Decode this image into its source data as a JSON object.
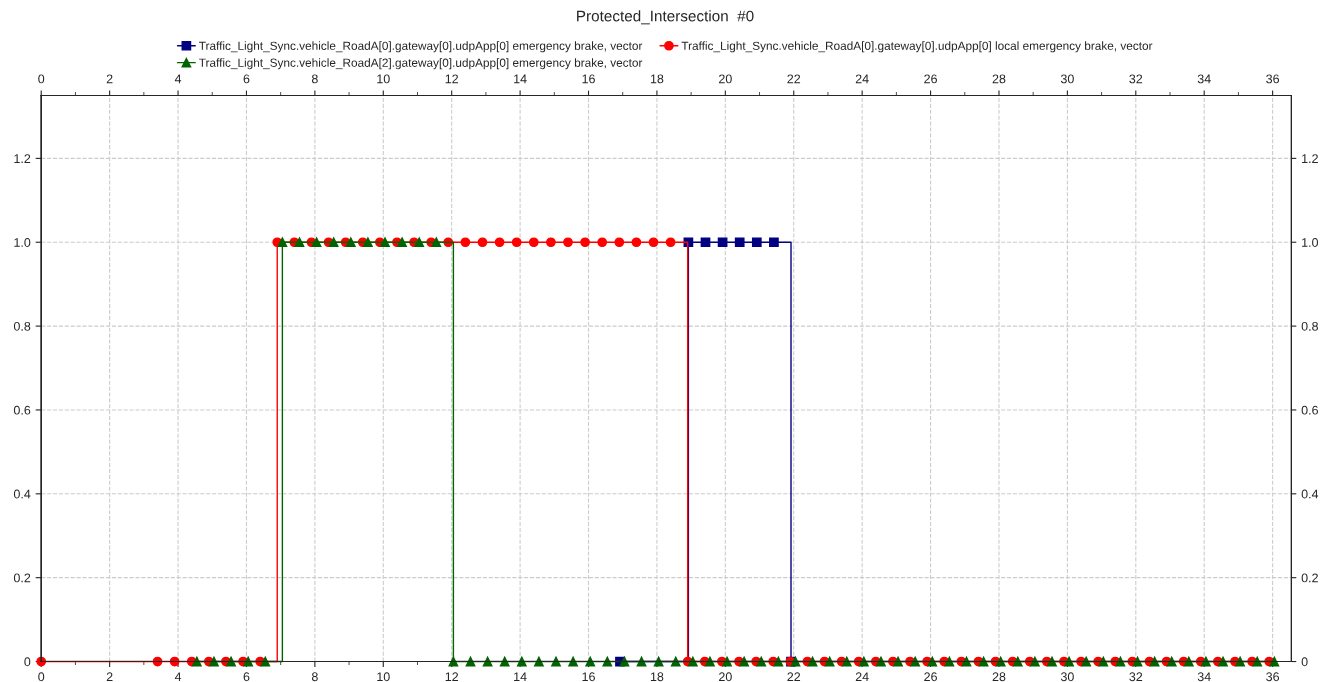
{
  "chart_data": {
    "type": "step",
    "title": "Protected_Intersection  #0",
    "xlim": [
      0,
      36.55
    ],
    "ylim": [
      0,
      1.35
    ],
    "xticks": [
      0,
      {
        "value": 1,
        "label": null
      },
      2,
      {
        "value": 3,
        "label": null
      },
      4,
      {
        "value": 5,
        "label": null
      },
      6,
      {
        "value": 7,
        "label": null
      },
      8,
      {
        "value": 9,
        "label": null
      },
      10,
      {
        "value": 11,
        "label": null
      },
      12,
      {
        "value": 13,
        "label": null
      },
      14,
      {
        "value": 15,
        "label": null
      },
      16,
      {
        "value": 17,
        "label": null
      },
      18,
      {
        "value": 19,
        "label": null
      },
      20,
      {
        "value": 21,
        "label": null
      },
      22,
      {
        "value": 23,
        "label": null
      },
      24,
      {
        "value": 25,
        "label": null
      },
      26,
      {
        "value": 27,
        "label": null
      },
      28,
      {
        "value": 29,
        "label": null
      },
      30,
      {
        "value": 31,
        "label": null
      },
      32,
      {
        "value": 33,
        "label": null
      },
      34,
      {
        "value": 35,
        "label": null
      },
      36
    ],
    "x2lim": [
      0,
      36.55
    ],
    "x2ticks": [
      0,
      {
        "value": 1,
        "label": null
      },
      2,
      {
        "value": 3,
        "label": null
      },
      4,
      {
        "value": 5,
        "label": null
      },
      6,
      {
        "value": 7,
        "label": null
      },
      8,
      {
        "value": 9,
        "label": null
      },
      10,
      {
        "value": 11,
        "label": null
      },
      12,
      {
        "value": 13,
        "label": null
      },
      14,
      {
        "value": 15,
        "label": null
      },
      16,
      {
        "value": 17,
        "label": null
      },
      18,
      {
        "value": 19,
        "label": null
      },
      20,
      {
        "value": 21,
        "label": null
      },
      22,
      {
        "value": 23,
        "label": null
      },
      24,
      {
        "value": 25,
        "label": null
      },
      26,
      {
        "value": 27,
        "label": null
      },
      28,
      {
        "value": 29,
        "label": null
      },
      30,
      {
        "value": 31,
        "label": null
      },
      32,
      {
        "value": 33,
        "label": null
      },
      34,
      {
        "value": 35,
        "label": null
      },
      36
    ],
    "yticks": [
      0,
      0.2,
      0.4,
      0.6,
      0.8,
      {
        "value": 1,
        "label": "1.0"
      },
      1.2
    ],
    "y2lim": [
      0,
      1.35
    ],
    "y2ticks": [
      0,
      0.2,
      0.4,
      0.6,
      0.8,
      {
        "value": 1,
        "label": "1.0"
      },
      1.2
    ],
    "grid": true,
    "legend": "top",
    "series": [
      {
        "name": "Traffic_Light_Sync.vehicle_RoadA[0].gateway[0].udpApp[0] emergency brake, vector",
        "color": "#000080",
        "marker": "square",
        "x": [
          16.92,
          18.92,
          19.42,
          19.92,
          20.42,
          20.92,
          21.42,
          21.92
        ],
        "values": [
          0,
          1,
          1,
          1,
          1,
          1,
          1,
          0
        ]
      },
      {
        "name": "Traffic_Light_Sync.vehicle_RoadA[0].gateway[0].udpApp[0] local emergency brake, vector",
        "color": "#ff0000",
        "marker": "circle",
        "x": [
          0,
          3.4,
          3.9,
          4.4,
          4.9,
          5.4,
          5.9,
          6.4,
          6.9,
          7.4,
          7.9,
          8.4,
          8.9,
          9.4,
          9.9,
          10.4,
          10.9,
          11.4,
          11.9,
          12.4,
          12.9,
          13.4,
          13.9,
          14.4,
          14.9,
          15.4,
          15.9,
          16.4,
          16.9,
          17.4,
          17.9,
          18.4,
          18.9,
          19.4,
          19.9,
          20.4,
          20.9,
          21.4,
          21.9,
          22.4,
          22.9,
          23.4,
          23.9,
          24.4,
          24.9,
          25.4,
          25.9,
          26.4,
          26.9,
          27.4,
          27.9,
          28.4,
          28.9,
          29.4,
          29.9,
          30.4,
          30.9,
          31.4,
          31.9,
          32.4,
          32.9,
          33.4,
          33.9,
          34.4,
          34.9,
          35.4,
          35.9
        ],
        "values": [
          0,
          0,
          0,
          0,
          0,
          0,
          0,
          0,
          1,
          1,
          1,
          1,
          1,
          1,
          1,
          1,
          1,
          1,
          1,
          1,
          1,
          1,
          1,
          1,
          1,
          1,
          1,
          1,
          1,
          1,
          1,
          1,
          0,
          0,
          0,
          0,
          0,
          0,
          0,
          0,
          0,
          0,
          0,
          0,
          0,
          0,
          0,
          0,
          0,
          0,
          0,
          0,
          0,
          0,
          0,
          0,
          0,
          0,
          0,
          0,
          0,
          0,
          0,
          0,
          0,
          0,
          0
        ]
      },
      {
        "name": "Traffic_Light_Sync.vehicle_RoadA[2].gateway[0].udpApp[0] emergency brake, vector",
        "color": "#006400",
        "marker": "triangle",
        "x": [
          4.55,
          5.05,
          5.55,
          6.05,
          6.55,
          7.05,
          7.55,
          8.05,
          8.55,
          9.05,
          9.55,
          10.05,
          10.55,
          11.05,
          11.55,
          12.05,
          12.55,
          13.05,
          13.55,
          14.05,
          14.55,
          15.05,
          15.55,
          16.05,
          16.55,
          17.05,
          17.55,
          18.05,
          18.55,
          19.05,
          19.55,
          20.05,
          20.55,
          21.05,
          21.55,
          22.05,
          22.55,
          23.05,
          23.55,
          24.05,
          24.55,
          25.05,
          25.55,
          26.05,
          26.55,
          27.05,
          27.55,
          28.05,
          28.55,
          29.05,
          29.55,
          30.05,
          30.55,
          31.05,
          31.55,
          32.05,
          32.55,
          33.05,
          33.55,
          34.05,
          34.55,
          35.05,
          35.55,
          36.05
        ],
        "values": [
          0,
          0,
          0,
          0,
          0,
          1,
          1,
          1,
          1,
          1,
          1,
          1,
          1,
          1,
          1,
          0,
          0,
          0,
          0,
          0,
          0,
          0,
          0,
          0,
          0,
          0,
          0,
          0,
          0,
          0,
          0,
          0,
          0,
          0,
          0,
          0,
          0,
          0,
          0,
          0,
          0,
          0,
          0,
          0,
          0,
          0,
          0,
          0,
          0,
          0,
          0,
          0,
          0,
          0,
          0,
          0,
          0,
          0,
          0,
          0,
          0,
          0,
          0,
          0
        ]
      }
    ]
  }
}
